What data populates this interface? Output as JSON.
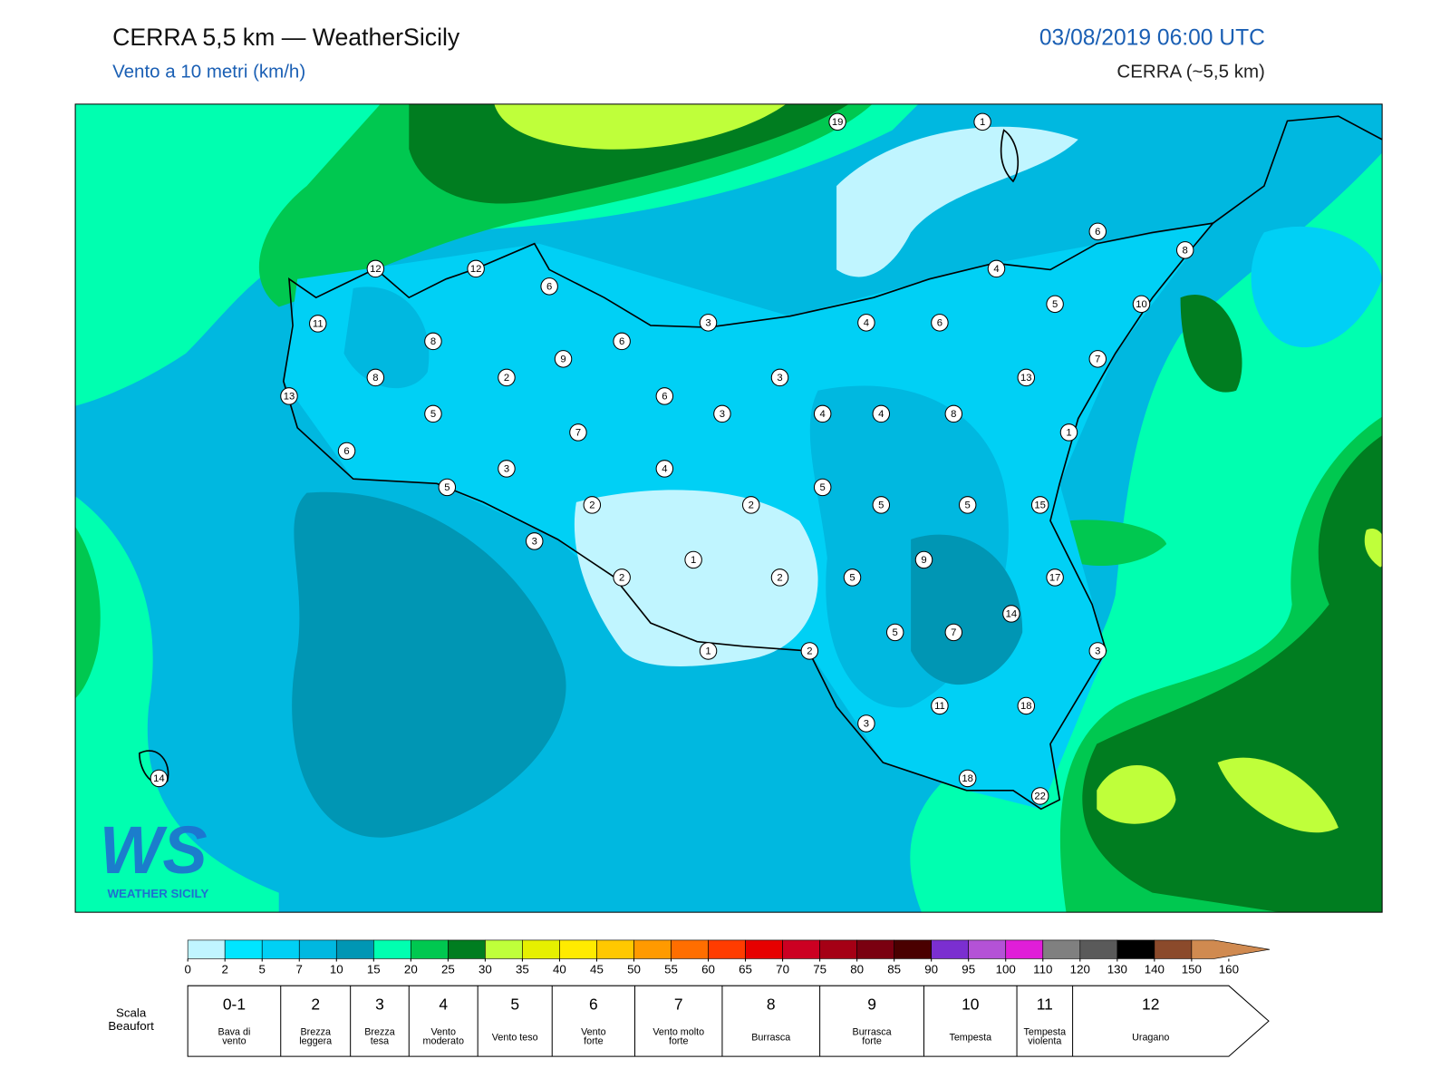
{
  "header": {
    "title": "CERRA 5,5 km — WeatherSicily",
    "subtitle": "Vento a 10 metri (km/h)",
    "datetime": "03/08/2019 06:00 UTC",
    "source": "CERRA (~5,5 km)"
  },
  "stations": [
    19,
    1,
    6,
    8,
    12,
    12,
    6,
    4,
    5,
    10,
    11,
    3,
    4,
    6,
    8,
    6,
    9,
    7,
    8,
    2,
    3,
    13,
    13,
    6,
    5,
    3,
    4,
    4,
    8,
    7,
    1,
    6,
    3,
    4,
    5,
    5,
    2,
    2,
    5,
    5,
    15,
    3,
    1,
    9,
    2,
    2,
    5,
    17,
    14,
    5,
    7,
    1,
    2,
    3,
    11,
    18,
    3,
    14,
    18,
    22
  ],
  "logo": {
    "mark": "WS",
    "name": "WEATHER SICILY"
  },
  "colorbar": {
    "ticks": [
      0,
      2,
      5,
      7,
      10,
      15,
      20,
      25,
      30,
      35,
      40,
      45,
      50,
      55,
      60,
      65,
      70,
      75,
      80,
      85,
      90,
      95,
      100,
      110,
      120,
      130,
      140,
      150,
      160
    ],
    "colors": [
      "#c0f5ff",
      "#00e5ff",
      "#00d0f5",
      "#00b8e0",
      "#0096b4",
      "#00ffb0",
      "#00c850",
      "#007d20",
      "#bfff3a",
      "#e6f000",
      "#ffeb00",
      "#ffc800",
      "#ff9a00",
      "#ff6e00",
      "#ff3c00",
      "#e60000",
      "#cc0022",
      "#a50015",
      "#7a0010",
      "#4a0000",
      "#7b2fd0",
      "#b452d6",
      "#e01ed8",
      "#808080",
      "#5a5a5a",
      "#000000",
      "#8b4a2b",
      "#d08a50"
    ]
  },
  "beaufort": {
    "title": [
      "Scala",
      "Beaufort"
    ],
    "forces": [
      {
        "force": "0-1",
        "label": [
          "Bava di",
          "vento"
        ]
      },
      {
        "force": "2",
        "label": [
          "Brezza",
          "leggera"
        ]
      },
      {
        "force": "3",
        "label": [
          "Brezza",
          "tesa"
        ]
      },
      {
        "force": "4",
        "label": [
          "Vento",
          "moderato"
        ]
      },
      {
        "force": "5",
        "label": [
          "Vento teso"
        ]
      },
      {
        "force": "6",
        "label": [
          "Vento",
          "forte"
        ]
      },
      {
        "force": "7",
        "label": [
          "Vento molto",
          "forte"
        ]
      },
      {
        "force": "8",
        "label": [
          "Burrasca"
        ]
      },
      {
        "force": "9",
        "label": [
          "Burrasca",
          "forte"
        ]
      },
      {
        "force": "10",
        "label": [
          "Tempesta"
        ]
      },
      {
        "force": "11",
        "label": [
          "Tempesta",
          "violenta"
        ]
      },
      {
        "force": "12",
        "label": [
          "Uragano"
        ]
      }
    ]
  }
}
